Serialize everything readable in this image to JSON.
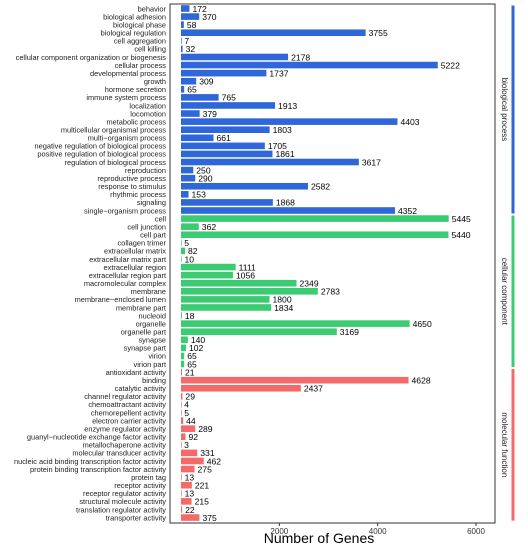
{
  "chart_data": {
    "type": "bar",
    "orientation": "horizontal",
    "xlabel": "Number of Genes",
    "ylabel": "",
    "title": "",
    "xlim": [
      0,
      6000
    ],
    "x_ticks": [
      2000,
      4000,
      6000
    ],
    "grid": false,
    "colors": {
      "biological process": "#2f67d8",
      "cellular component": "#3bcb72",
      "molecular function": "#f46a6a"
    },
    "groups": [
      {
        "name": "biological process",
        "color": "#2f67d8",
        "categories": [
          "behavior",
          "biological adhesion",
          "biological phase",
          "biological regulation",
          "cell aggregation",
          "cell killing",
          "cellular component organization or biogenesis",
          "cellular process",
          "developmental process",
          "growth",
          "hormone secretion",
          "immune system process",
          "localization",
          "locomotion",
          "metabolic process",
          "multicellular organismal process",
          "multi−organism process",
          "negative regulation of biological process",
          "positive regulation of biological process",
          "regulation of biological process",
          "reproduction",
          "reproductive process",
          "response to stimulus",
          "rhythmic process",
          "signaling",
          "single−organism process"
        ],
        "values": [
          172,
          370,
          58,
          3755,
          7,
          32,
          2178,
          5222,
          1737,
          309,
          65,
          765,
          1913,
          379,
          4403,
          1803,
          661,
          1705,
          1861,
          3617,
          250,
          290,
          2582,
          153,
          1868,
          4352
        ]
      },
      {
        "name": "cellular component",
        "color": "#3bcb72",
        "categories": [
          "cell",
          "cell junction",
          "cell part",
          "collagen trimer",
          "extracellular matrix",
          "extracellular matrix part",
          "extracellular region",
          "extracellular region part",
          "macromolecular complex",
          "membrane",
          "membrane−enclosed lumen",
          "membrane part",
          "nucleoid",
          "organelle",
          "organelle part",
          "synapse",
          "synapse part",
          "virion",
          "virion part"
        ],
        "values": [
          5445,
          362,
          5440,
          5,
          82,
          10,
          1111,
          1056,
          2349,
          2783,
          1800,
          1834,
          18,
          4650,
          3169,
          140,
          102,
          65,
          65
        ]
      },
      {
        "name": "molecular function",
        "color": "#f46a6a",
        "categories": [
          "antioxidant activity",
          "binding",
          "catalytic activity",
          "channel regulator activity",
          "chemoattractant activity",
          "chemorepellent activity",
          "electron carrier activity",
          "enzyme regulator activity",
          "guanyl−nucleotide exchange factor activity",
          "metallochaperone activity",
          "molecular transducer activity",
          "nucleic acid binding transcription factor activity",
          "protein binding transcription factor activity",
          "protein tag",
          "receptor activity",
          "receptor regulator activity",
          "structural molecule activity",
          "translation regulator activity",
          "transporter activity"
        ],
        "values": [
          21,
          4628,
          2437,
          29,
          4,
          5,
          44,
          289,
          92,
          3,
          331,
          462,
          275,
          13,
          221,
          13,
          215,
          22,
          375
        ]
      }
    ]
  }
}
